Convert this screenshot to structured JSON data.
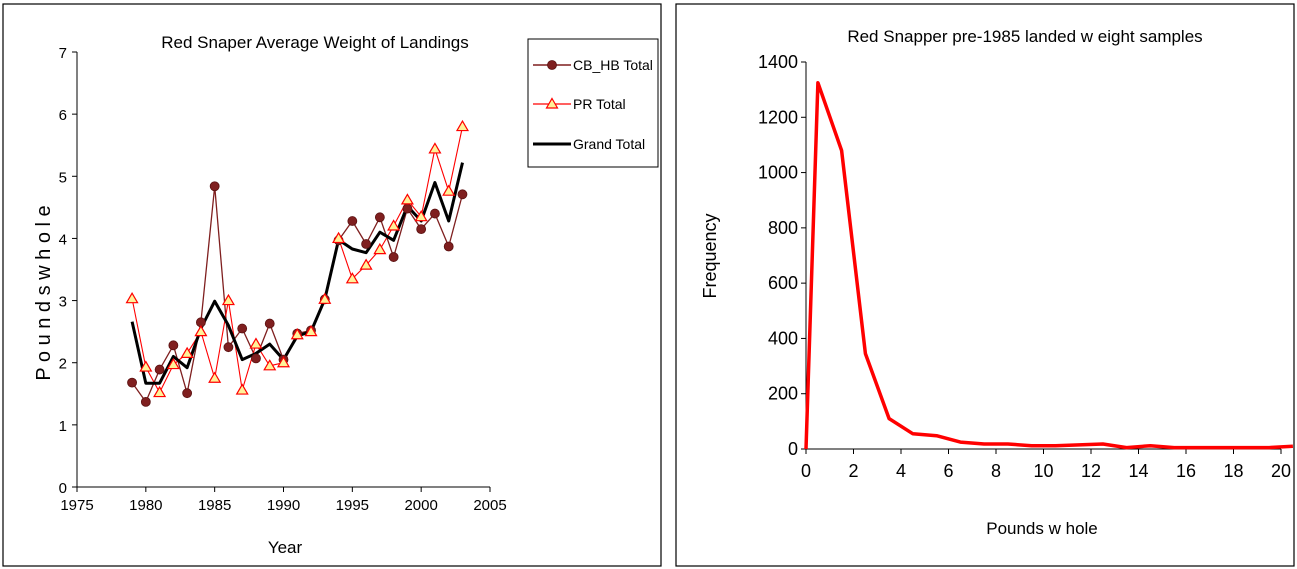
{
  "chart_data": [
    {
      "type": "line",
      "title": "Red Snaper Average Weight of Landings",
      "xlabel": "Year",
      "ylabel": "P o u n d s   w h o l e",
      "xlim": [
        1975,
        2005
      ],
      "ylim": [
        0,
        7
      ],
      "xticks": [
        1975,
        1980,
        1985,
        1990,
        1995,
        2000,
        2005
      ],
      "yticks": [
        0,
        1,
        2,
        3,
        4,
        5,
        6,
        7
      ],
      "grid": false,
      "legend": "top-right",
      "series": [
        {
          "name": "CB_HB Total",
          "color": "#7f1f1f",
          "marker": "circle",
          "x": [
            1979,
            1980,
            1981,
            1982,
            1983,
            1984,
            1985,
            1986,
            1987,
            1988,
            1989,
            1990,
            1991,
            1992,
            1993,
            1994,
            1995,
            1996,
            1997,
            1998,
            1999,
            2000,
            2001,
            2002,
            2003
          ],
          "y": [
            1.68,
            1.37,
            1.89,
            2.28,
            1.51,
            2.65,
            4.84,
            2.25,
            2.55,
            2.07,
            2.63,
            2.05,
            2.47,
            2.52,
            3.02,
            3.97,
            4.28,
            3.91,
            4.34,
            3.7,
            4.48,
            4.15,
            4.4,
            3.87,
            4.71
          ]
        },
        {
          "name": "PR Total",
          "color": "#ff0000",
          "marker": "triangle",
          "x": [
            1979,
            1980,
            1981,
            1982,
            1983,
            1984,
            1985,
            1986,
            1987,
            1988,
            1989,
            1990,
            1991,
            1992,
            1993,
            1994,
            1995,
            1996,
            1997,
            1998,
            1999,
            2000,
            2001,
            2002,
            2003
          ],
          "y": [
            3.03,
            1.93,
            1.52,
            1.97,
            2.15,
            2.5,
            1.75,
            3.0,
            1.56,
            2.3,
            1.95,
            2.0,
            2.45,
            2.5,
            3.02,
            4.0,
            3.35,
            3.57,
            3.82,
            4.2,
            4.62,
            4.35,
            5.44,
            4.76,
            5.8
          ]
        },
        {
          "name": "Grand Total",
          "color": "#000000",
          "marker": "none",
          "x": [
            1979,
            1980,
            1981,
            1982,
            1983,
            1984,
            1985,
            1986,
            1987,
            1988,
            1989,
            1990,
            1991,
            1992,
            1993,
            1994,
            1995,
            1996,
            1997,
            1998,
            1999,
            2000,
            2001,
            2002,
            2003
          ],
          "y": [
            2.66,
            1.67,
            1.67,
            2.1,
            1.92,
            2.55,
            2.99,
            2.6,
            2.05,
            2.15,
            2.3,
            2.05,
            2.43,
            2.5,
            3.02,
            3.98,
            3.83,
            3.77,
            4.1,
            3.97,
            4.52,
            4.28,
            4.9,
            4.28,
            5.22
          ]
        }
      ]
    },
    {
      "type": "line",
      "title": "Red Snapper pre-1985 landed w eight samples",
      "xlabel": "Pounds w hole",
      "ylabel": "Frequency",
      "xlim": [
        0,
        20
      ],
      "ylim": [
        0,
        1400
      ],
      "xticks": [
        0,
        2,
        4,
        6,
        8,
        10,
        12,
        14,
        16,
        18,
        20
      ],
      "yticks": [
        0,
        200,
        400,
        600,
        800,
        1000,
        1200,
        1400
      ],
      "grid": false,
      "series": [
        {
          "color": "#ff0000",
          "marker": "none",
          "x": [
            0,
            0.5,
            1.5,
            2.5,
            3.5,
            4.5,
            5.5,
            6.5,
            7.5,
            8.5,
            9.5,
            10.5,
            11.5,
            12.5,
            13.5,
            14.5,
            15.5,
            16.5,
            17.5,
            18.5,
            19.5,
            20.5
          ],
          "y": [
            0,
            1325,
            1080,
            345,
            110,
            55,
            48,
            25,
            18,
            18,
            12,
            12,
            15,
            18,
            5,
            12,
            5,
            5,
            5,
            5,
            5,
            10
          ]
        }
      ]
    }
  ]
}
